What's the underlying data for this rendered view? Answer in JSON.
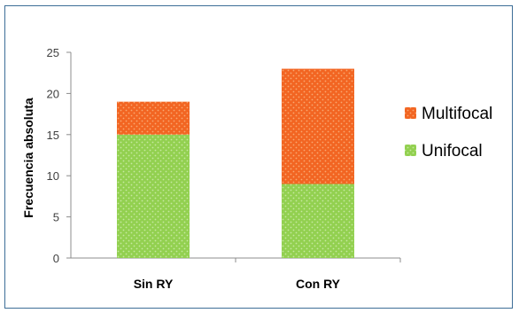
{
  "chart_data": {
    "type": "bar",
    "stacked": true,
    "categories": [
      "Sin RY",
      "Con RY"
    ],
    "series": [
      {
        "name": "Unifocal",
        "values": [
          15,
          9
        ],
        "color": "#92d050"
      },
      {
        "name": "Multifocal",
        "values": [
          4,
          14
        ],
        "color": "#f26522"
      }
    ],
    "ylabel": "Frecuencia absoluta",
    "xlabel": "",
    "ylim": [
      0,
      25
    ],
    "yticks": [
      0,
      5,
      10,
      15,
      20,
      25
    ],
    "grid": false,
    "legend_position": "right",
    "legend_order": [
      "Multifocal",
      "Unifocal"
    ]
  }
}
